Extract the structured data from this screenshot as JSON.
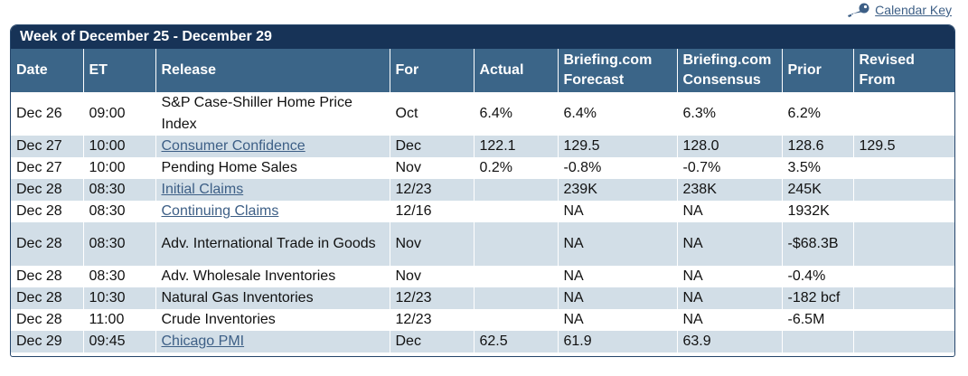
{
  "calendar_key": {
    "label": "Calendar Key",
    "icon": "key-icon"
  },
  "week_title": "Week of December 25 - December 29",
  "columns": [
    {
      "line1": "Date",
      "line2": ""
    },
    {
      "line1": "ET",
      "line2": ""
    },
    {
      "line1": "Release",
      "line2": ""
    },
    {
      "line1": "For",
      "line2": ""
    },
    {
      "line1": "Actual",
      "line2": ""
    },
    {
      "line1": "Briefing.com",
      "line2": "Forecast"
    },
    {
      "line1": "Briefing.com",
      "line2": "Consensus"
    },
    {
      "line1": "Prior",
      "line2": ""
    },
    {
      "line1": "Revised",
      "line2": "From"
    }
  ],
  "rows": [
    {
      "date": "Dec 26",
      "et": "09:00",
      "release": "S&P Case-Shiller Home Price Index",
      "link": false,
      "for": "Oct",
      "actual": "6.4%",
      "forecast": "6.4%",
      "consensus": "6.3%",
      "prior": "6.2%",
      "revised": ""
    },
    {
      "date": "Dec 27",
      "et": "10:00",
      "release": "Consumer Confidence",
      "link": true,
      "for": "Dec",
      "actual": "122.1",
      "forecast": "129.5",
      "consensus": "128.0",
      "prior": "128.6",
      "revised": "129.5"
    },
    {
      "date": "Dec 27",
      "et": "10:00",
      "release": "Pending Home Sales",
      "link": false,
      "for": "Nov",
      "actual": "0.2%",
      "forecast": "-0.8%",
      "consensus": "-0.7%",
      "prior": "3.5%",
      "revised": ""
    },
    {
      "date": "Dec 28",
      "et": "08:30",
      "release": "Initial Claims",
      "link": true,
      "for": "12/23",
      "actual": "",
      "forecast": "239K",
      "consensus": "238K",
      "prior": "245K",
      "revised": ""
    },
    {
      "date": "Dec 28",
      "et": "08:30",
      "release": "Continuing Claims",
      "link": true,
      "for": "12/16",
      "actual": "",
      "forecast": "NA",
      "consensus": "NA",
      "prior": "1932K",
      "revised": ""
    },
    {
      "date": "Dec 28",
      "et": "08:30",
      "release": "Adv. International Trade in Goods",
      "link": false,
      "for": "Nov",
      "actual": "",
      "forecast": "NA",
      "consensus": "NA",
      "prior": "-$68.3B",
      "revised": ""
    },
    {
      "date": "Dec 28",
      "et": "08:30",
      "release": "Adv. Wholesale Inventories",
      "link": false,
      "for": "Nov",
      "actual": "",
      "forecast": "NA",
      "consensus": "NA",
      "prior": "-0.4%",
      "revised": ""
    },
    {
      "date": "Dec 28",
      "et": "10:30",
      "release": "Natural Gas Inventories",
      "link": false,
      "for": "12/23",
      "actual": "",
      "forecast": "NA",
      "consensus": "NA",
      "prior": "-182 bcf",
      "revised": ""
    },
    {
      "date": "Dec 28",
      "et": "11:00",
      "release": "Crude Inventories",
      "link": false,
      "for": "12/23",
      "actual": "",
      "forecast": "NA",
      "consensus": "NA",
      "prior": "-6.5M",
      "revised": ""
    },
    {
      "date": "Dec 29",
      "et": "09:45",
      "release": "Chicago PMI",
      "link": true,
      "for": "Dec",
      "actual": "62.5",
      "forecast": "61.9",
      "consensus": "63.9",
      "prior": "",
      "revised": ""
    }
  ]
}
